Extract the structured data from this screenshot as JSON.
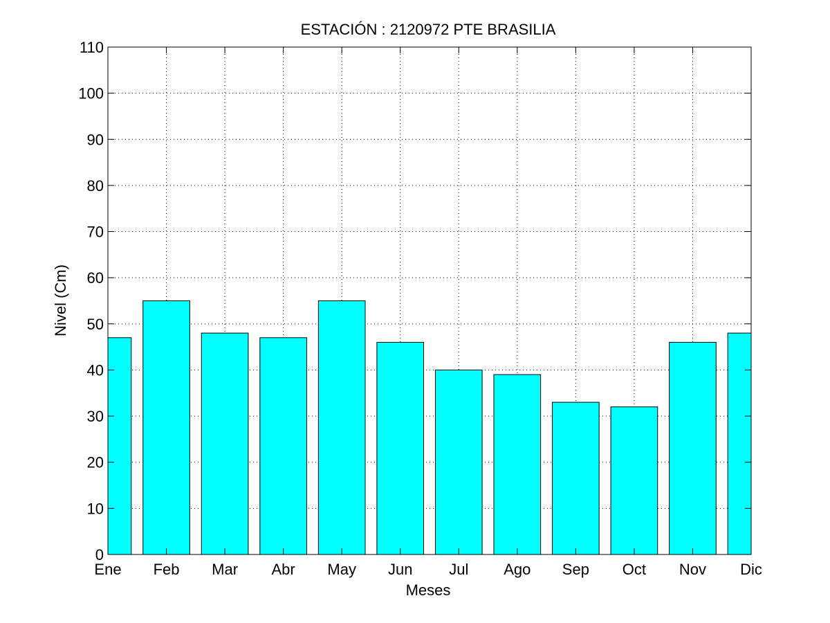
{
  "chart_data": {
    "type": "bar",
    "title": "ESTACIÓN :  2120972  PTE BRASILIA",
    "xlabel": "Meses",
    "ylabel": "Nivel (Cm)",
    "categories": [
      "Ene",
      "Feb",
      "Mar",
      "Abr",
      "May",
      "Jun",
      "Jul",
      "Ago",
      "Sep",
      "Oct",
      "Nov",
      "Dic"
    ],
    "values": [
      47,
      55,
      48,
      47,
      55,
      46,
      40,
      39,
      33,
      32,
      46,
      48
    ],
    "ylim": [
      0,
      110
    ],
    "yticks": [
      0,
      10,
      20,
      30,
      40,
      50,
      60,
      70,
      80,
      90,
      100,
      110
    ],
    "grid": true,
    "bar_color": "#00ffff",
    "edge_color": "#000000"
  }
}
